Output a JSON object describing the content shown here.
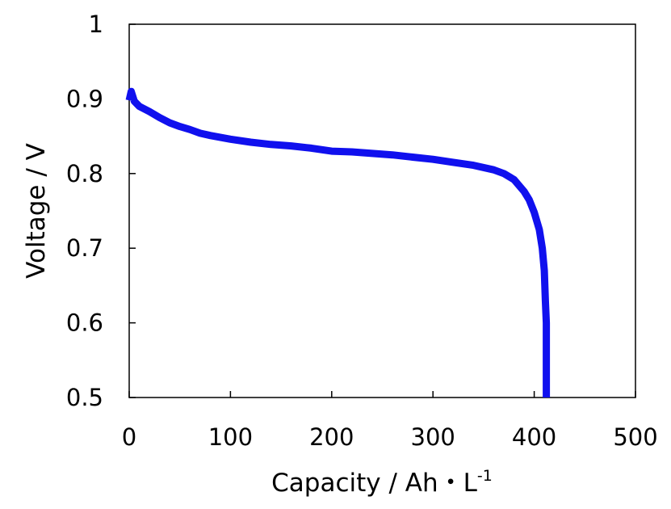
{
  "chart_data": {
    "type": "line",
    "title": "",
    "xlabel": "Capacity / Ah・L",
    "xlabel_superscript": "-1",
    "ylabel": "Voltage / V",
    "xlim": [
      0,
      500
    ],
    "ylim": [
      0.5,
      1.0
    ],
    "x_ticks": [
      0,
      100,
      200,
      300,
      400,
      500
    ],
    "y_ticks": [
      0.5,
      0.6,
      0.7,
      0.8,
      0.9,
      1.0
    ],
    "x_tick_labels": [
      "0",
      "100",
      "200",
      "300",
      "400",
      "500"
    ],
    "y_tick_labels": [
      "0.5",
      "0.6",
      "0.7",
      "0.8",
      "0.9",
      "1"
    ],
    "grid": false,
    "legend": "none",
    "series": [
      {
        "color": "#1010ee",
        "x": [
          0,
          2,
          5,
          10,
          20,
          30,
          40,
          50,
          60,
          70,
          80,
          100,
          120,
          140,
          160,
          180,
          200,
          220,
          240,
          260,
          280,
          300,
          320,
          340,
          360,
          370,
          380,
          390,
          395,
          400,
          405,
          408,
          410,
          411,
          412,
          412,
          412
        ],
        "y": [
          0.898,
          0.91,
          0.897,
          0.89,
          0.883,
          0.875,
          0.868,
          0.863,
          0.859,
          0.854,
          0.851,
          0.846,
          0.842,
          0.839,
          0.837,
          0.834,
          0.83,
          0.829,
          0.827,
          0.825,
          0.822,
          0.819,
          0.815,
          0.811,
          0.805,
          0.8,
          0.792,
          0.776,
          0.765,
          0.748,
          0.725,
          0.7,
          0.67,
          0.63,
          0.6,
          0.55,
          0.5
        ]
      }
    ]
  }
}
